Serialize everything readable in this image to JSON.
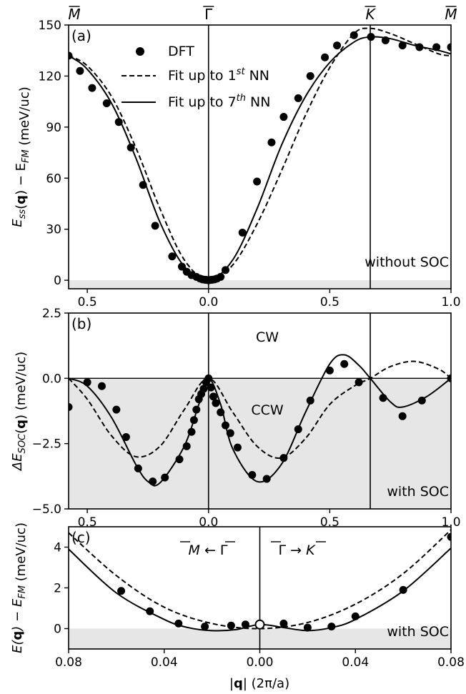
{
  "chart_data": [
    {
      "panel": "(a)",
      "type": "scatter",
      "ylabel": "E_ss(q) − E_FM (meV/uc)",
      "ylabel_parts": [
        "E",
        "ss",
        "(",
        "q",
        ") − E",
        "FM",
        " (meV/uc)"
      ],
      "ylim": [
        -5,
        150
      ],
      "xlim": [
        -0.577,
        1.0
      ],
      "yticks": [
        0,
        30,
        60,
        90,
        120,
        150
      ],
      "xticks": [
        {
          "pos": -0.5,
          "label": "0.5"
        },
        {
          "pos": 0.0,
          "label": "0.0"
        },
        {
          "pos": 0.5,
          "label": "0.5"
        },
        {
          "pos": 1.0,
          "label": "1.0"
        }
      ],
      "symmetry_points": [
        {
          "label": "M",
          "pos": -0.577,
          "line": false
        },
        {
          "label": "Γ",
          "pos": 0.0,
          "line": true
        },
        {
          "label": "K",
          "pos": 0.667,
          "line": true
        },
        {
          "label": "M",
          "pos": 1.0,
          "line": false
        }
      ],
      "annotation": "without SOC",
      "legend": {
        "placement": "top-left",
        "entries": [
          {
            "marker": "dot",
            "label_parts": [
              "DFT"
            ]
          },
          {
            "marker": "dashed",
            "label_parts": [
              "Fit up to 1",
              "st",
              " NN"
            ]
          },
          {
            "marker": "solid",
            "label_parts": [
              "Fit up to 7",
              "th",
              " NN"
            ]
          }
        ]
      },
      "series": [
        {
          "name": "DFT",
          "style": "dots",
          "x": [
            -0.577,
            -0.53,
            -0.48,
            -0.42,
            -0.37,
            -0.32,
            -0.27,
            -0.22,
            -0.15,
            -0.11,
            -0.09,
            -0.07,
            -0.05,
            -0.035,
            -0.025,
            -0.015,
            -0.008,
            0.0,
            0.008,
            0.015,
            0.025,
            0.035,
            0.05,
            0.07,
            0.14,
            0.2,
            0.26,
            0.31,
            0.37,
            0.42,
            0.48,
            0.53,
            0.6,
            0.67,
            0.73,
            0.8,
            0.87,
            0.94,
            1.0
          ],
          "y": [
            132,
            123,
            113,
            104,
            93,
            78,
            56,
            32,
            14,
            8,
            5,
            3,
            2,
            1,
            0.5,
            0.3,
            0.2,
            0.0,
            0.2,
            0.3,
            0.5,
            1,
            2,
            6,
            28,
            58,
            81,
            96,
            107,
            120,
            131,
            138,
            144,
            143,
            141,
            138,
            137,
            137,
            137
          ]
        },
        {
          "name": "Fit up to 1st NN",
          "style": "dashed",
          "x": [
            -0.577,
            -0.5,
            -0.4,
            -0.3,
            -0.2,
            -0.1,
            0.0,
            0.1,
            0.2,
            0.3,
            0.4,
            0.5,
            0.6,
            0.667,
            0.75,
            0.85,
            0.95,
            1.0
          ],
          "y": [
            132,
            126,
            108,
            78,
            42,
            12,
            0,
            9,
            33,
            64,
            97,
            125,
            145,
            148,
            145,
            139,
            133,
            132
          ]
        },
        {
          "name": "Fit up to 7th NN",
          "style": "solid",
          "x": [
            -0.577,
            -0.5,
            -0.4,
            -0.3,
            -0.2,
            -0.1,
            0.0,
            0.1,
            0.2,
            0.3,
            0.4,
            0.5,
            0.6,
            0.667,
            0.75,
            0.85,
            0.95,
            1.0
          ],
          "y": [
            132,
            124,
            104,
            72,
            34,
            8,
            0,
            12,
            42,
            79,
            108,
            128,
            140,
            143,
            142,
            138,
            135,
            133
          ]
        }
      ]
    },
    {
      "panel": "(b)",
      "type": "scatter",
      "ylabel": "ΔE_SOC(q) (meV/uc)",
      "ylabel_parts": [
        "ΔE",
        "SOC",
        "(",
        "q",
        ") (meV/uc)"
      ],
      "ylim": [
        -5.0,
        2.5
      ],
      "xlim": [
        -0.577,
        1.0
      ],
      "yticks": [
        {
          "value": -5.0,
          "label": "−5.0"
        },
        {
          "value": -2.5,
          "label": "−2.5"
        },
        {
          "value": 0.0,
          "label": "0.0"
        },
        {
          "value": 2.5,
          "label": "2.5"
        }
      ],
      "xticks": [
        {
          "pos": -0.5,
          "label": "0.5"
        },
        {
          "pos": 0.0,
          "label": "0.0"
        },
        {
          "pos": 0.5,
          "label": "0.5"
        },
        {
          "pos": 1.0,
          "label": "1.0"
        }
      ],
      "annotations": [
        "CW",
        "CCW",
        "with SOC"
      ],
      "series": [
        {
          "name": "DFT",
          "style": "dots",
          "x": [
            -0.577,
            -0.5,
            -0.44,
            -0.38,
            -0.34,
            -0.29,
            -0.23,
            -0.18,
            -0.12,
            -0.09,
            -0.07,
            -0.06,
            -0.05,
            -0.04,
            -0.03,
            -0.02,
            -0.01,
            0.0,
            0.01,
            0.02,
            0.03,
            0.05,
            0.07,
            0.09,
            0.12,
            0.18,
            0.24,
            0.31,
            0.37,
            0.42,
            0.5,
            0.56,
            0.62,
            0.72,
            0.8,
            0.88,
            1.0
          ],
          "y": [
            -1.1,
            -0.15,
            -0.3,
            -1.2,
            -2.25,
            -3.45,
            -3.95,
            -3.8,
            -3.1,
            -2.6,
            -2.05,
            -1.6,
            -1.2,
            -0.8,
            -0.6,
            -0.4,
            -0.15,
            0.0,
            -0.35,
            -0.7,
            -0.95,
            -1.3,
            -1.8,
            -2.1,
            -2.65,
            -3.7,
            -3.85,
            -3.05,
            -1.95,
            -0.85,
            0.3,
            0.55,
            -0.15,
            -0.75,
            -1.45,
            -0.85,
            0.0
          ]
        },
        {
          "name": "Fit up to 1st NN",
          "style": "dashed",
          "x": [
            -0.577,
            -0.5,
            -0.4,
            -0.3,
            -0.2,
            -0.1,
            0.0,
            0.1,
            0.2,
            0.3,
            0.4,
            0.5,
            0.6,
            0.667,
            0.75,
            0.85,
            0.95,
            1.0
          ],
          "y": [
            0.0,
            -0.8,
            -2.2,
            -3.0,
            -2.6,
            -1.2,
            0.0,
            -1.3,
            -2.6,
            -3.05,
            -2.3,
            -1.0,
            -0.3,
            0.0,
            0.45,
            0.65,
            0.35,
            0.0
          ]
        },
        {
          "name": "Fit up to 7th NN",
          "style": "solid",
          "x": [
            -0.577,
            -0.5,
            -0.4,
            -0.3,
            -0.25,
            -0.2,
            -0.1,
            -0.04,
            0.0,
            0.05,
            0.1,
            0.2,
            0.3,
            0.4,
            0.5,
            0.56,
            0.62,
            0.667,
            0.75,
            0.8,
            0.9,
            1.0
          ],
          "y": [
            0.0,
            -0.3,
            -1.5,
            -3.3,
            -3.95,
            -4.0,
            -2.6,
            -1.0,
            0.0,
            -1.0,
            -2.7,
            -3.95,
            -3.3,
            -1.3,
            0.55,
            0.9,
            0.5,
            0.0,
            -0.9,
            -1.1,
            -0.7,
            0.0
          ]
        }
      ]
    },
    {
      "panel": "(c)",
      "type": "scatter",
      "ylabel": "E(q) − E_FM (meV/uc)",
      "ylabel_parts": [
        "E(",
        "q",
        ") − E",
        "FM",
        " (meV/uc)"
      ],
      "xlabel_parts": [
        "|",
        "q",
        "| (2π/a)"
      ],
      "ylim": [
        -1,
        5
      ],
      "xlim": [
        -0.08,
        0.08
      ],
      "yticks": [
        0,
        2,
        4
      ],
      "xticks": [
        {
          "pos": -0.08,
          "label": "0.08"
        },
        {
          "pos": -0.04,
          "label": "0.04"
        },
        {
          "pos": 0.0,
          "label": "0.00"
        },
        {
          "pos": 0.04,
          "label": "0.04"
        },
        {
          "pos": 0.08,
          "label": "0.08"
        }
      ],
      "annotations": [
        "M ← Γ",
        "Γ → K",
        "with SOC"
      ],
      "series": [
        {
          "name": "DFT",
          "style": "dots",
          "x": [
            -0.058,
            -0.046,
            -0.034,
            -0.023,
            -0.012,
            -0.006,
            0.01,
            0.02,
            0.03,
            0.04,
            0.06,
            0.08
          ],
          "y": [
            1.85,
            0.85,
            0.25,
            0.1,
            0.15,
            0.2,
            0.25,
            0.05,
            0.1,
            0.6,
            1.9,
            4.5
          ]
        },
        {
          "name": "Fit up to 1st NN",
          "style": "dashed",
          "x": [
            -0.08,
            -0.06,
            -0.04,
            -0.02,
            0.0,
            0.02,
            0.04,
            0.06,
            0.08
          ],
          "y": [
            4.7,
            2.6,
            1.05,
            0.25,
            0.0,
            0.3,
            1.2,
            2.7,
            4.85
          ]
        },
        {
          "name": "Fit up to 7th NN",
          "style": "solid",
          "x": [
            -0.08,
            -0.06,
            -0.04,
            -0.03,
            -0.02,
            -0.01,
            0.0,
            0.01,
            0.02,
            0.03,
            0.04,
            0.06,
            0.08
          ],
          "y": [
            3.9,
            1.75,
            0.45,
            0.05,
            -0.1,
            -0.05,
            0.2,
            0.05,
            -0.1,
            0.05,
            0.45,
            1.85,
            3.95
          ]
        }
      ]
    }
  ]
}
